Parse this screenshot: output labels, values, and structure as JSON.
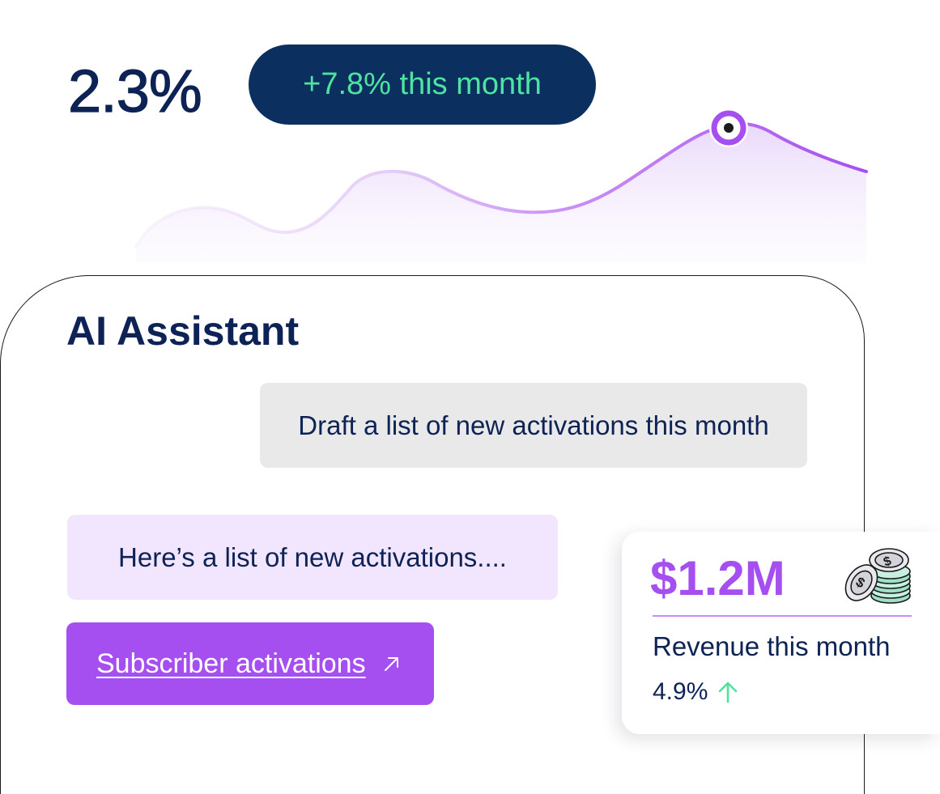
{
  "metric": {
    "value": "2.3%",
    "change": "+7.8% this month",
    "trend_highlight": "peak"
  },
  "assistant": {
    "title": "AI Assistant",
    "user_message": "Draft a list of new activations this month",
    "reply": "Here’s a list of new activations....",
    "link_label": "Subscriber activations",
    "link_icon": "arrow-up-right-icon"
  },
  "revenue": {
    "value": "$1.2M",
    "label": "Revenue this month",
    "growth": "4.9%",
    "growth_icon": "arrow-up-icon",
    "icon": "coins-icon"
  },
  "colors": {
    "navy": "#0d2255",
    "pill": "#0b2f5e",
    "green": "#4fe3a1",
    "purple": "#a64ff0",
    "lavender": "#f1e6fd",
    "gray_bubble": "#e9e9ea"
  }
}
